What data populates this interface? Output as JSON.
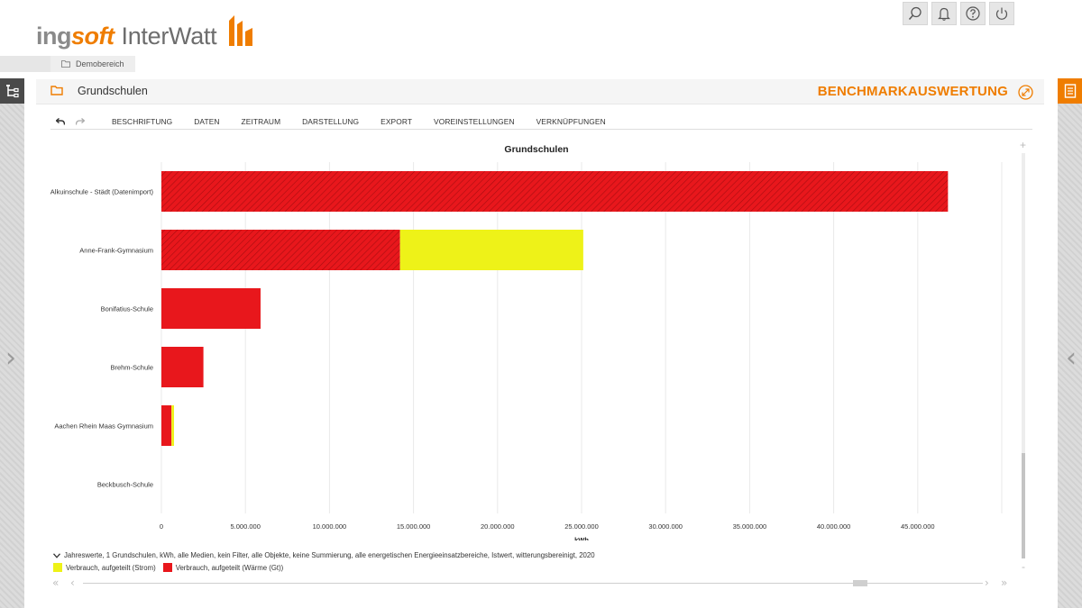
{
  "brand": {
    "logo_part1": "ing",
    "logo_part2": "soft",
    "logo_part3": "InterWatt",
    "accent_color": "#ef7d00"
  },
  "header_icons": [
    "search-icon",
    "bell-icon",
    "help-icon",
    "power-icon"
  ],
  "breadcrumb": {
    "label": "Demobereich"
  },
  "panel": {
    "title": "Grundschulen",
    "module": "BENCHMARKAUSWERTUNG"
  },
  "toolbar": {
    "menus": [
      "BESCHRIFTUNG",
      "DATEN",
      "ZEITRAUM",
      "DARSTELLUNG",
      "EXPORT",
      "VOREINSTELLUNGEN",
      "VERKNÜPFUNGEN"
    ]
  },
  "chart_data": {
    "type": "bar",
    "orientation": "horizontal",
    "stacked": true,
    "title": "Grundschulen",
    "xlabel": "kWh",
    "ylabel": "",
    "xlim": [
      0,
      50000000
    ],
    "x_ticks": [
      0,
      5000000,
      10000000,
      15000000,
      20000000,
      25000000,
      30000000,
      35000000,
      40000000,
      45000000
    ],
    "x_tick_labels": [
      "0",
      "5.000.000",
      "10.000.000",
      "15.000.000",
      "20.000.000",
      "25.000.000",
      "30.000.000",
      "35.000.000",
      "40.000.000",
      "45.000.000"
    ],
    "grid": true,
    "categories": [
      "Alkuinschule - Städt (Datenimport)",
      "Anne-Frank-Gymnasium",
      "Bonifatius-Schule",
      "Brehm-Schule",
      "Aachen Rhein Maas Gymnasium",
      "Beckbusch-Schule"
    ],
    "series": [
      {
        "name": "Verbrauch, aufgeteilt (Wärme (Gt))",
        "color": "#e8171c",
        "hatched": [
          true,
          true,
          false,
          false,
          false,
          false
        ],
        "values": [
          46800000,
          14200000,
          5900000,
          2500000,
          600000,
          0
        ]
      },
      {
        "name": "Verbrauch, aufgeteilt (Strom)",
        "color": "#eef218",
        "values": [
          0,
          10900000,
          0,
          0,
          150000,
          0
        ]
      }
    ],
    "legend_position": "bottom-left",
    "footnote": "Jahreswerte, 1 Grundschulen, kWh, alle Medien, kein Filter, alle Objekte, keine Summierung, alle energetischen Energieeinsatzbereiche, Istwert, witterungsbereinigt, 2020",
    "legend_items": [
      {
        "label": "Verbrauch, aufgeteilt (Strom)",
        "color": "#eef218"
      },
      {
        "label": "Verbrauch, aufgeteilt (Wärme (Gt))",
        "color": "#e8171c"
      }
    ]
  }
}
